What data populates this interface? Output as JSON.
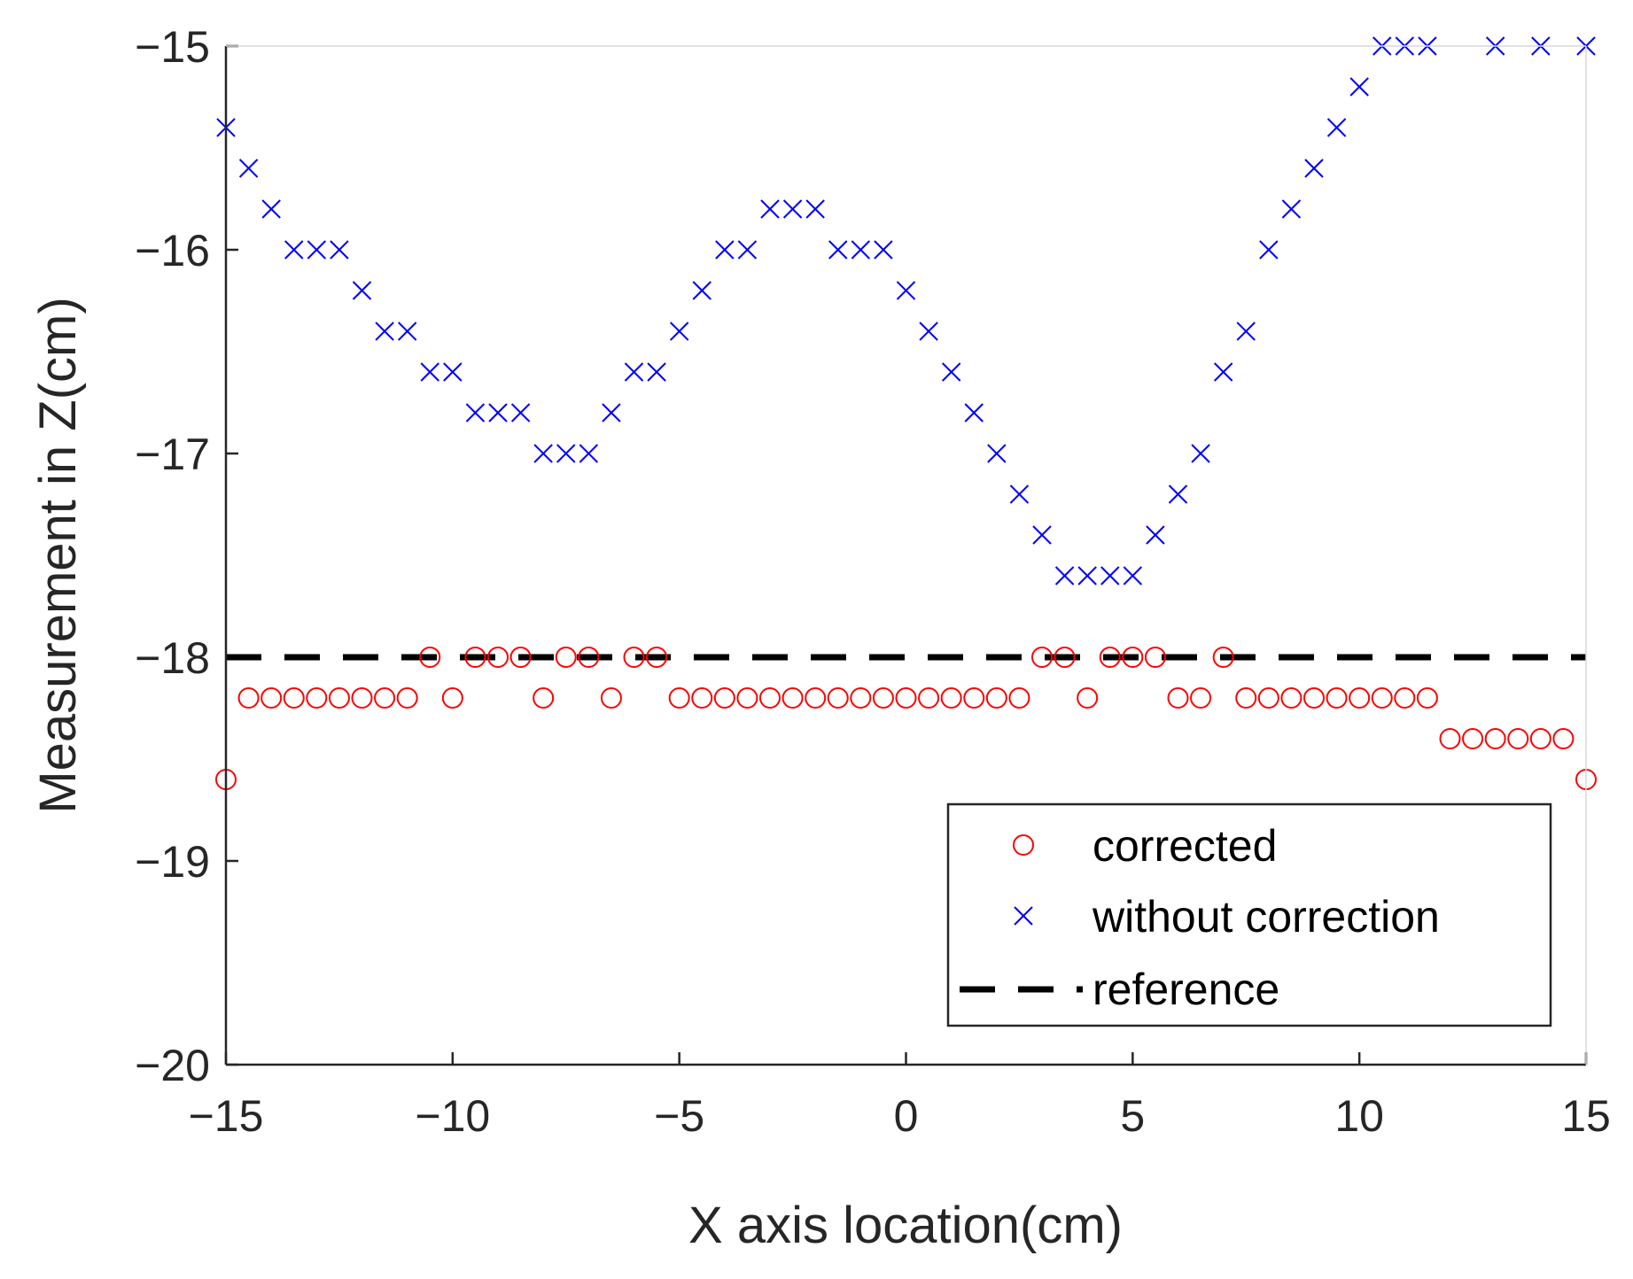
{
  "chart_data": {
    "type": "scatter",
    "title": "",
    "xlabel": "X axis location(cm)",
    "ylabel": "Measurement in Z(cm)",
    "xlim": [
      -15,
      15
    ],
    "ylim": [
      -20,
      -15
    ],
    "xticks": [
      -15,
      -10,
      -5,
      0,
      5,
      10,
      15
    ],
    "yticks": [
      -20,
      -19,
      -18,
      -17,
      -16,
      -15
    ],
    "legend_position": "bottom-right",
    "colors": {
      "corrected": "#ff0000",
      "without": "#0000ff",
      "reference": "#000000",
      "axis": "#262626"
    },
    "series": [
      {
        "name": "corrected",
        "marker": "circle",
        "x": [
          -15,
          -14.5,
          -14,
          -13.5,
          -13,
          -12.5,
          -12,
          -11.5,
          -11,
          -10.5,
          -10,
          -9.5,
          -9,
          -8.5,
          -8,
          -7.5,
          -7,
          -6.5,
          -6,
          -5.5,
          -5,
          -4.5,
          -4,
          -3.5,
          -3,
          -2.5,
          -2,
          -1.5,
          -1,
          -0.5,
          0,
          0.5,
          1,
          1.5,
          2,
          2.5,
          3,
          3.5,
          4,
          4.5,
          5,
          5.5,
          6,
          6.5,
          7,
          7.5,
          8,
          8.5,
          9,
          9.5,
          10,
          10.5,
          11,
          11.5,
          12,
          12.5,
          13,
          13.5,
          14,
          14.5,
          15
        ],
        "y": [
          -18.6,
          -18.2,
          -18.2,
          -18.2,
          -18.2,
          -18.2,
          -18.2,
          -18.2,
          -18.2,
          -18.0,
          -18.2,
          -18.0,
          -18.0,
          -18.0,
          -18.2,
          -18.0,
          -18.0,
          -18.2,
          -18.0,
          -18.0,
          -18.2,
          -18.2,
          -18.2,
          -18.2,
          -18.2,
          -18.2,
          -18.2,
          -18.2,
          -18.2,
          -18.2,
          -18.2,
          -18.2,
          -18.2,
          -18.2,
          -18.2,
          -18.2,
          -18.0,
          -18.0,
          -18.2,
          -18.0,
          -18.0,
          -18.0,
          -18.2,
          -18.2,
          -18.0,
          -18.2,
          -18.2,
          -18.2,
          -18.2,
          -18.2,
          -18.2,
          -18.2,
          -18.2,
          -18.2,
          -18.4,
          -18.4,
          -18.4,
          -18.4,
          -18.4,
          -18.4,
          -18.6
        ]
      },
      {
        "name": "without correction",
        "marker": "x",
        "x": [
          -15,
          -14.5,
          -14,
          -13.5,
          -13,
          -12.5,
          -12,
          -11.5,
          -11,
          -10.5,
          -10,
          -9.5,
          -9,
          -8.5,
          -8,
          -7.5,
          -7,
          -6.5,
          -6,
          -5.5,
          -5,
          -4.5,
          -4,
          -3.5,
          -3,
          -2.5,
          -2,
          -1.5,
          -1,
          -0.5,
          0,
          0.5,
          1,
          1.5,
          2,
          2.5,
          3,
          3.5,
          4,
          4.5,
          5,
          5.5,
          6,
          6.5,
          7,
          7.5,
          8,
          8.5,
          9,
          9.5,
          10,
          10.5,
          11,
          11.5,
          13,
          14,
          15
        ],
        "y": [
          -15.4,
          -15.6,
          -15.8,
          -16.0,
          -16.0,
          -16.0,
          -16.2,
          -16.4,
          -16.4,
          -16.6,
          -16.6,
          -16.8,
          -16.8,
          -16.8,
          -17.0,
          -17.0,
          -17.0,
          -16.8,
          -16.6,
          -16.6,
          -16.4,
          -16.2,
          -16.0,
          -16.0,
          -15.8,
          -15.8,
          -15.8,
          -16.0,
          -16.0,
          -16.0,
          -16.2,
          -16.4,
          -16.6,
          -16.8,
          -17.0,
          -17.2,
          -17.4,
          -17.6,
          -17.6,
          -17.6,
          -17.6,
          -17.4,
          -17.2,
          -17.0,
          -16.6,
          -16.4,
          -16.0,
          -15.8,
          -15.6,
          -15.4,
          -15.2,
          -15.0,
          -15.0,
          -15.0,
          -15.0,
          -15.0,
          -15.0
        ]
      },
      {
        "name": "reference",
        "marker": "dashed-line",
        "x": [
          -15,
          15
        ],
        "y": [
          -18,
          -18
        ]
      }
    ]
  }
}
